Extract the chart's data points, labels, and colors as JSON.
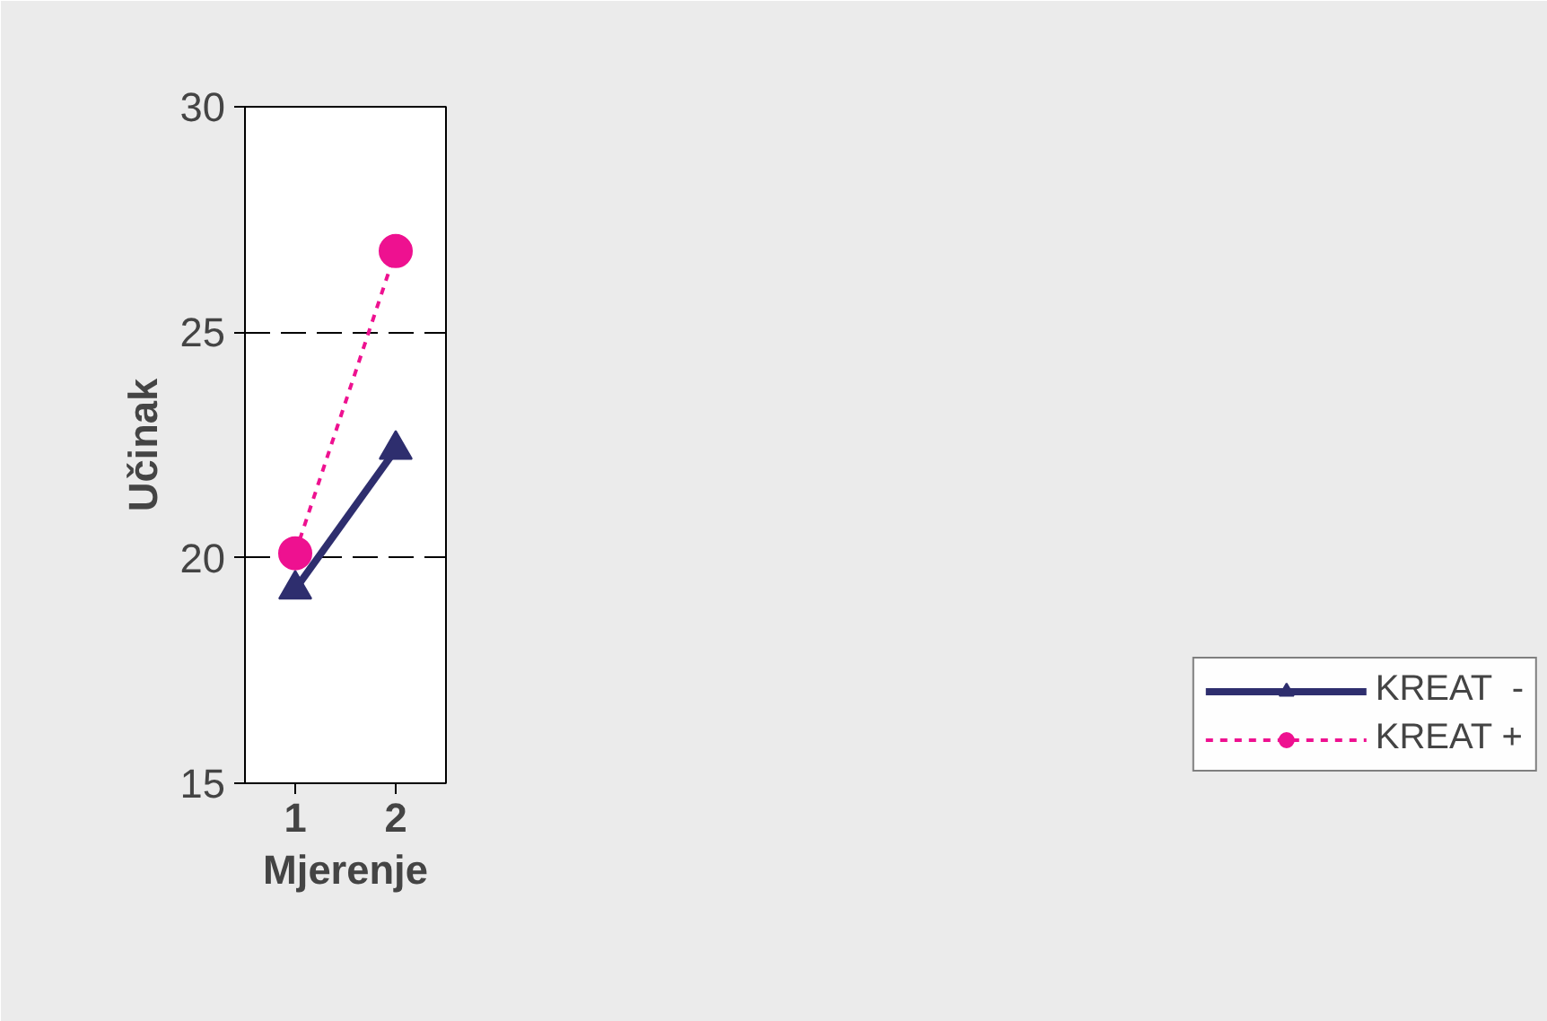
{
  "chart_data": {
    "type": "line",
    "xlabel": "Mjerenje",
    "ylabel": "Učinak",
    "categories": [
      "1",
      "2"
    ],
    "series": [
      {
        "name": "KREAT  -",
        "color": "#2e2e6e",
        "values": [
          19.3,
          22.4
        ],
        "marker": "triangle",
        "line_style": "solid"
      },
      {
        "name": "KREAT +",
        "color": "#ee1190",
        "values": [
          20.1,
          26.8
        ],
        "marker": "circle",
        "line_style": "dotted"
      }
    ],
    "ylim": [
      15,
      30
    ],
    "yticks": [
      15,
      20,
      25,
      30
    ],
    "grid": "y",
    "legend": "bottom right"
  }
}
